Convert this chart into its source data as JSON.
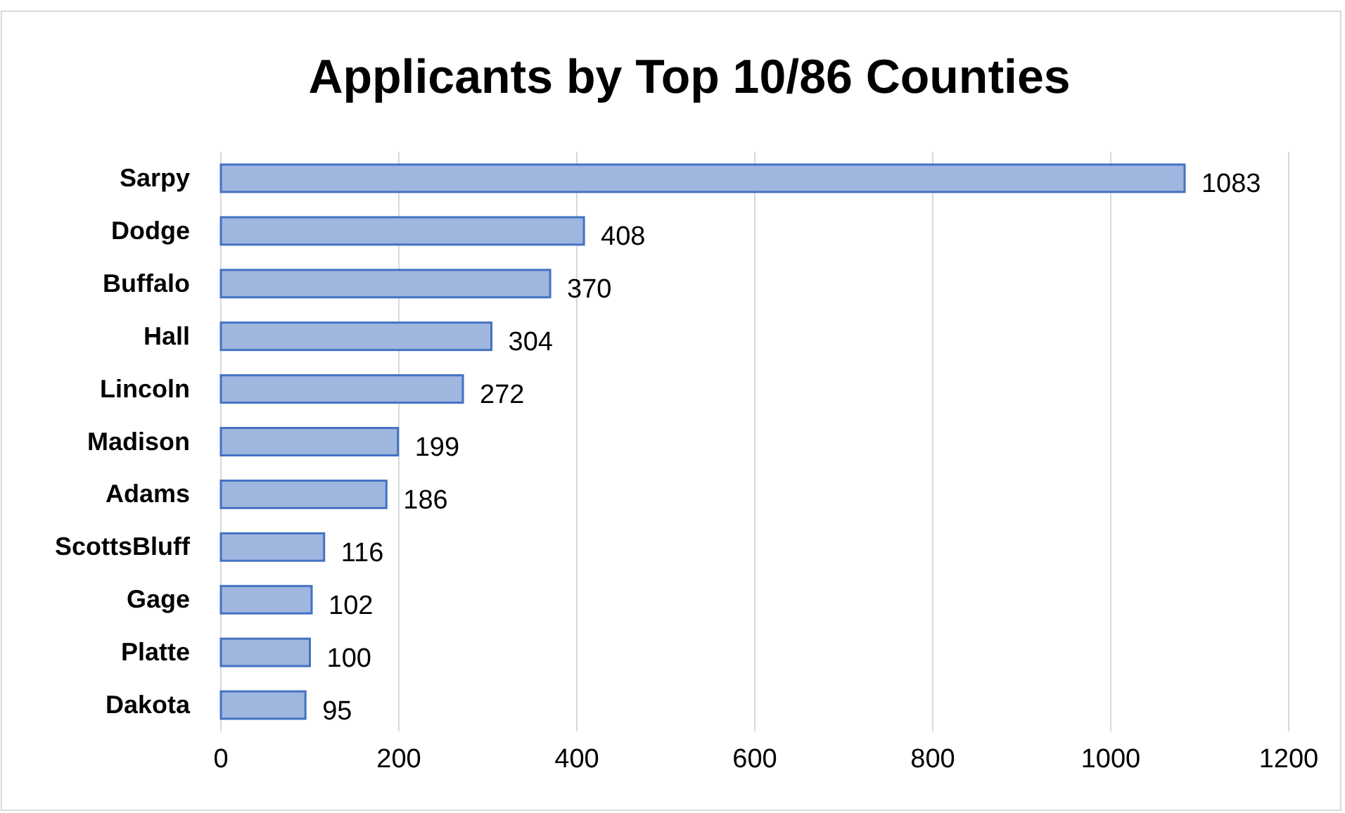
{
  "chart_data": {
    "type": "bar",
    "orientation": "horizontal",
    "title": "Applicants by Top 10/86 Counties",
    "categories": [
      "Sarpy",
      "Dodge",
      "Buffalo",
      "Hall",
      "Lincoln",
      "Madison",
      "Adams",
      "ScottsBluff",
      "Gage",
      "Platte",
      "Dakota"
    ],
    "values": [
      1083,
      408,
      370,
      304,
      272,
      199,
      186,
      116,
      102,
      100,
      95
    ],
    "color": "#9fb6df",
    "xlim": [
      0,
      1200
    ],
    "xticks": [
      0,
      200,
      400,
      600,
      800,
      1000,
      1200
    ],
    "grid": "x",
    "data_labels": true
  }
}
